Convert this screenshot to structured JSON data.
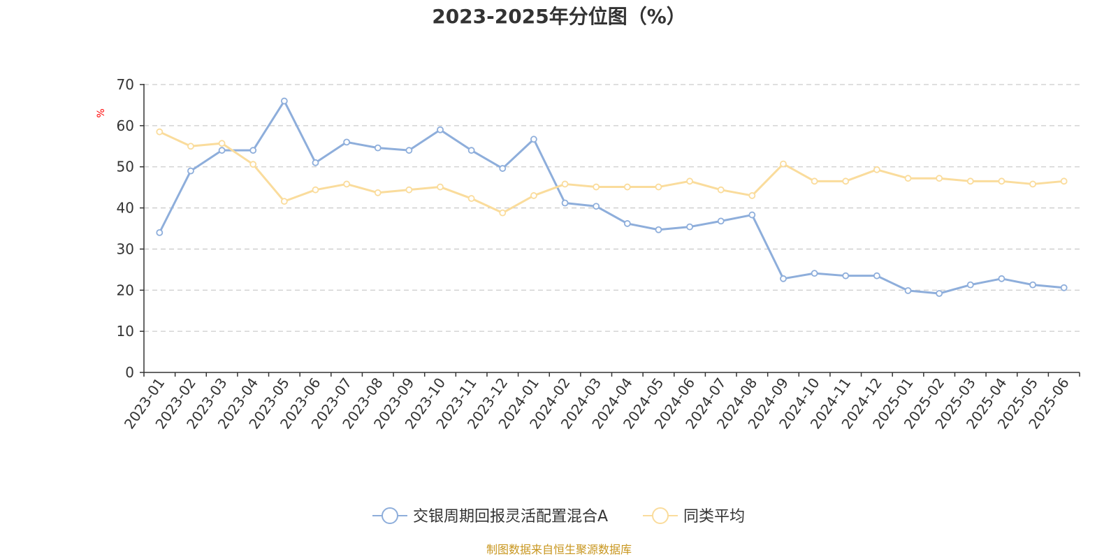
{
  "chart_data": {
    "type": "line",
    "title": "2023-2025年分位图（%）",
    "ylabel": "%",
    "ylim": [
      0,
      70
    ],
    "yticks": [
      0,
      10,
      20,
      30,
      40,
      50,
      60,
      70
    ],
    "grid": true,
    "legend_position": "bottom",
    "categories": [
      "2023-01",
      "2023-02",
      "2023-03",
      "2023-04",
      "2023-05",
      "2023-06",
      "2023-07",
      "2023-08",
      "2023-09",
      "2023-10",
      "2023-11",
      "2023-12",
      "2024-01",
      "2024-02",
      "2024-03",
      "2024-04",
      "2024-05",
      "2024-06",
      "2024-07",
      "2024-08",
      "2024-09",
      "2024-10",
      "2024-11",
      "2024-12",
      "2025-01",
      "2025-02",
      "2025-03",
      "2025-04",
      "2025-05",
      "2025-06"
    ],
    "series": [
      {
        "name": "交银周期回报灵活配置混合A",
        "color": "#8eaedb",
        "values": [
          34.0,
          49.0,
          54.0,
          54.0,
          66.0,
          51.0,
          56.0,
          54.6,
          54.0,
          59.0,
          54.0,
          49.6,
          56.7,
          41.2,
          40.4,
          36.2,
          34.7,
          35.4,
          36.8,
          38.3,
          22.8,
          24.1,
          23.5,
          23.5,
          19.9,
          19.2,
          21.3,
          22.8,
          21.3,
          20.6
        ]
      },
      {
        "name": "同类平均",
        "color": "#fadc9c",
        "values": [
          58.5,
          55.0,
          55.7,
          50.6,
          41.6,
          44.4,
          45.8,
          43.7,
          44.4,
          45.1,
          42.3,
          38.8,
          43.0,
          45.8,
          45.1,
          45.1,
          45.1,
          46.5,
          44.4,
          43.0,
          50.7,
          46.5,
          46.5,
          49.3,
          47.2,
          47.2,
          46.5,
          46.5,
          45.8,
          46.5
        ]
      }
    ]
  },
  "source_text": "制图数据来自恒生聚源数据库"
}
